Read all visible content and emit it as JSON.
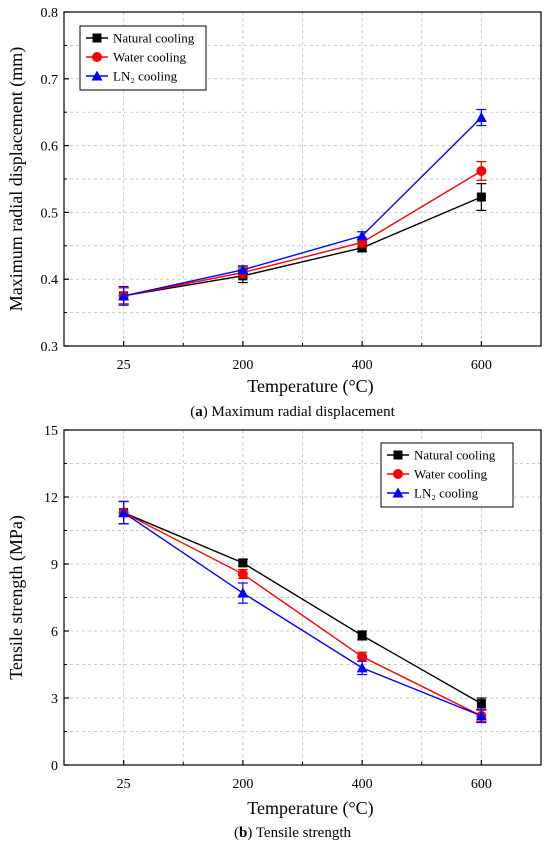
{
  "chart_data": [
    {
      "type": "line",
      "panel_letter": "a",
      "caption": "Maximum radial displacement",
      "xlabel": "Temperature (°C)",
      "ylabel": "Maximum radial displacement (mm)",
      "categories": [
        "25",
        "200",
        "400",
        "600"
      ],
      "ylim": [
        0.3,
        0.8
      ],
      "yticks": [
        "0.3",
        "0.4",
        "0.5",
        "0.6",
        "0.7",
        "0.8"
      ],
      "ytick_values": [
        0.3,
        0.4,
        0.5,
        0.6,
        0.7,
        0.8
      ],
      "grid": true,
      "legend_position": "top-left",
      "series": [
        {
          "name": "Natural cooling",
          "color": "#000000",
          "marker": "square",
          "values": [
            0.375,
            0.405,
            0.447,
            0.523
          ],
          "errors": [
            0.012,
            0.01,
            0.006,
            0.02
          ]
        },
        {
          "name": "Water cooling",
          "color": "#ff0000",
          "marker": "circle",
          "values": [
            0.375,
            0.41,
            0.455,
            0.562
          ],
          "errors": [
            0.012,
            0.008,
            0.007,
            0.014
          ]
        },
        {
          "name": "LN₂ cooling",
          "color": "#0000ff",
          "marker": "triangle",
          "values": [
            0.375,
            0.414,
            0.465,
            0.642
          ],
          "errors": [
            0.014,
            0.006,
            0.006,
            0.012
          ]
        }
      ]
    },
    {
      "type": "line",
      "panel_letter": "b",
      "caption": "Tensile strength",
      "xlabel": "Temperature (°C)",
      "ylabel": "Tensile strength (MPa)",
      "categories": [
        "25",
        "200",
        "400",
        "600"
      ],
      "ylim": [
        0,
        15
      ],
      "yticks": [
        "0",
        "3",
        "6",
        "9",
        "12",
        "15"
      ],
      "ytick_values": [
        0,
        3,
        6,
        9,
        12,
        15
      ],
      "grid": true,
      "legend_position": "top-right",
      "series": [
        {
          "name": "Natural cooling",
          "color": "#000000",
          "marker": "square",
          "values": [
            11.3,
            9.05,
            5.8,
            2.75
          ],
          "errors": [
            0.5,
            0.15,
            0.2,
            0.25
          ]
        },
        {
          "name": "Water cooling",
          "color": "#ff0000",
          "marker": "circle",
          "values": [
            11.3,
            8.55,
            4.85,
            2.2
          ],
          "errors": [
            0.5,
            0.2,
            0.2,
            0.25
          ]
        },
        {
          "name": "LN₂ cooling",
          "color": "#0000ff",
          "marker": "triangle",
          "values": [
            11.3,
            7.7,
            4.35,
            2.2
          ],
          "errors": [
            0.5,
            0.45,
            0.3,
            0.3
          ]
        }
      ]
    }
  ]
}
